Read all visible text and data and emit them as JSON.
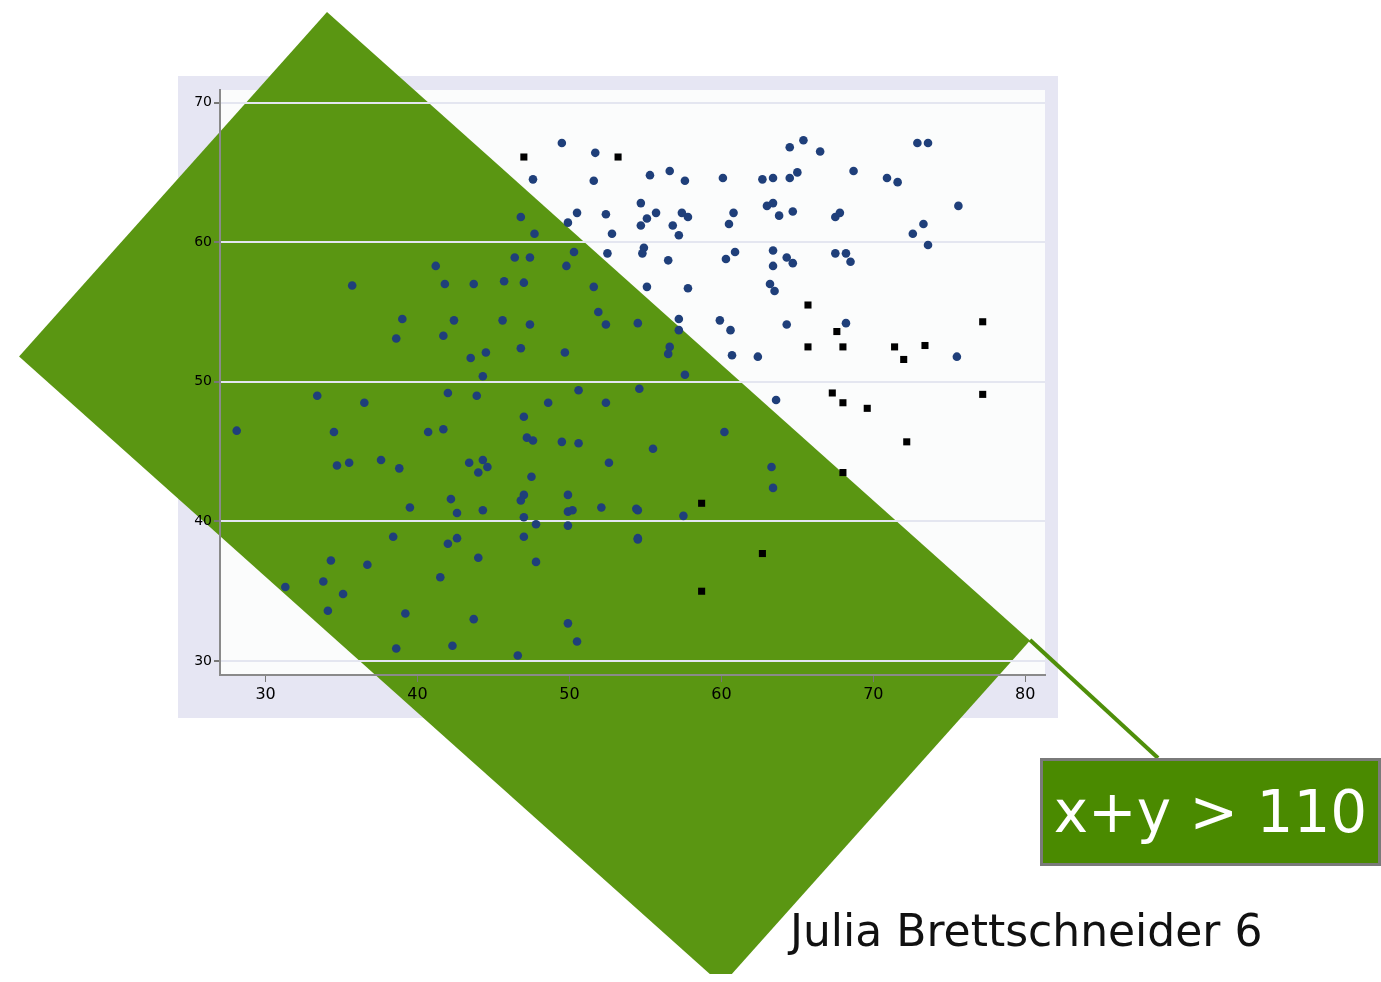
{
  "chart_data": {
    "type": "scatter",
    "xlim": [
      27,
      81.3
    ],
    "ylim": [
      29,
      70.9
    ],
    "xticks": [
      30,
      40,
      50,
      60,
      70,
      80
    ],
    "yticks": [
      30,
      40,
      50,
      60,
      70
    ],
    "grid": "y",
    "annotations": [
      "x+y > 110",
      "Julia Brettschneider 6"
    ],
    "series": [
      {
        "color": "#1f3f7a",
        "marker": "circle",
        "x": [
          49.5,
          51.7,
          47.6,
          51.6,
          50.5,
          52.4,
          49.9,
          52.8,
          52.5,
          64.5,
          65.4,
          66.5,
          72.9,
          73.6,
          55.3,
          56.6,
          57.6,
          60.1,
          62.7,
          63.4,
          64.5,
          65.0,
          68.7,
          70.9,
          71.6,
          54.7,
          55.7,
          55.1,
          54.7,
          57.4,
          57.8,
          56.8,
          57.2,
          60.8,
          60.5,
          63.0,
          63.4,
          63.8,
          64.7,
          67.5,
          67.8,
          75.6,
          73.3,
          72.6,
          73.6,
          54.9,
          54.8,
          56.5,
          60.9,
          60.3,
          63.4,
          64.3,
          64.7,
          63.4,
          67.5,
          68.2,
          68.5,
          55.1,
          57.8,
          63.2,
          63.5,
          57.2,
          59.9,
          60.6,
          64.3,
          68.2,
          60.7,
          62.4,
          75.5,
          63.6,
          46.8,
          47.7,
          46.4,
          47.4,
          50.3,
          49.8,
          41.2,
          41.8,
          43.7,
          45.7,
          47.0,
          51.6,
          35.7,
          39.0,
          42.4,
          45.6,
          47.4,
          52.4,
          51.9,
          38.6,
          41.7,
          43.5,
          44.5,
          44.3,
          46.8,
          49.7,
          54.5,
          33.4,
          36.5,
          42.0,
          43.9,
          48.6,
          50.6,
          52.4,
          28.1,
          34.5,
          40.7,
          41.7,
          47.0,
          47.2,
          47.6,
          49.5,
          50.6,
          34.7,
          35.5,
          37.6,
          38.8,
          43.4,
          44.3,
          44.6,
          44.0,
          47.5,
          52.6,
          39.5,
          42.2,
          42.6,
          44.3,
          47.0,
          46.8,
          47.0,
          47.8,
          49.9,
          49.9,
          50.2,
          49.9,
          52.1,
          54.4,
          38.4,
          42.0,
          42.6,
          47.0,
          54.5,
          34.3,
          36.7,
          44.0,
          47.8,
          31.3,
          33.8,
          35.1,
          41.5,
          34.1,
          39.2,
          43.7,
          49.9,
          38.6,
          42.3,
          46.6,
          50.5,
          57.2,
          56.6,
          56.5,
          57.6,
          54.6,
          60.2,
          55.5,
          63.3,
          63.4,
          54.5,
          57.5,
          54.5
        ],
        "values": [
          67.1,
          66.4,
          64.5,
          64.4,
          62.1,
          62.0,
          61.4,
          60.6,
          59.2,
          66.8,
          67.3,
          66.5,
          67.1,
          67.1,
          64.8,
          65.1,
          64.4,
          64.6,
          64.5,
          64.6,
          64.6,
          65.0,
          65.1,
          64.6,
          64.3,
          62.8,
          62.1,
          61.7,
          61.2,
          62.1,
          61.8,
          61.2,
          60.5,
          62.1,
          61.3,
          62.6,
          62.8,
          61.9,
          62.2,
          61.8,
          62.1,
          62.6,
          61.3,
          60.6,
          59.8,
          59.6,
          59.2,
          58.7,
          59.3,
          58.8,
          59.4,
          58.9,
          58.5,
          58.3,
          59.2,
          59.2,
          58.6,
          56.8,
          56.7,
          57.0,
          56.5,
          54.5,
          54.4,
          53.7,
          54.1,
          54.2,
          51.9,
          51.8,
          51.8,
          48.7,
          61.8,
          60.6,
          58.9,
          58.9,
          59.3,
          58.3,
          58.3,
          57.0,
          57.0,
          57.2,
          57.1,
          56.8,
          56.9,
          54.5,
          54.4,
          54.4,
          54.1,
          54.1,
          55.0,
          53.1,
          53.3,
          51.7,
          52.1,
          50.4,
          52.4,
          52.1,
          54.2,
          49.0,
          48.5,
          49.2,
          49.0,
          48.5,
          49.4,
          48.5,
          46.5,
          46.4,
          46.4,
          46.6,
          47.5,
          46.0,
          45.8,
          45.7,
          45.6,
          44.0,
          44.2,
          44.4,
          43.8,
          44.2,
          44.4,
          43.9,
          43.5,
          43.2,
          44.2,
          41.0,
          41.6,
          40.6,
          40.8,
          41.9,
          41.5,
          40.3,
          39.8,
          41.9,
          40.7,
          40.8,
          39.7,
          41.0,
          40.9,
          38.9,
          38.4,
          38.8,
          38.9,
          38.8,
          37.2,
          36.9,
          37.4,
          37.1,
          35.3,
          35.7,
          34.8,
          36.0,
          33.6,
          33.4,
          33.0,
          32.7,
          30.9,
          31.1,
          30.4,
          31.4,
          53.7,
          52.5,
          52.0,
          50.5,
          49.5,
          46.4,
          45.2,
          43.9,
          42.4,
          40.8,
          40.4,
          38.7
        ]
      },
      {
        "color": "#000000",
        "marker": "square",
        "x": [
          47.0,
          53.2,
          65.7,
          67.6,
          65.7,
          68.0,
          71.4,
          73.4,
          72.0,
          77.2,
          67.3,
          68.0,
          69.6,
          77.2,
          72.2,
          68.0,
          58.7,
          62.7,
          58.7
        ],
        "values": [
          66.1,
          66.1,
          55.5,
          53.6,
          52.5,
          52.5,
          52.5,
          52.6,
          51.6,
          54.3,
          49.2,
          48.5,
          48.1,
          49.1,
          45.7,
          43.5,
          41.3,
          37.7,
          35.0
        ]
      }
    ]
  }
}
